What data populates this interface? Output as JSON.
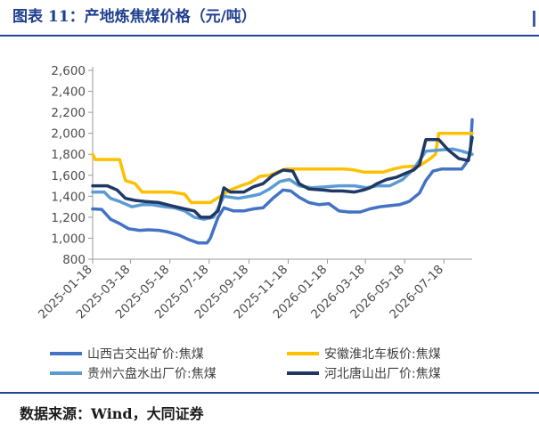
{
  "title": "图表 11：产地炼焦煤价格（元/吨）",
  "source": "数据来源：Wind，大同证券",
  "chart_data": {
    "type": "line",
    "x_tick_labels": [
      "2025-01-18",
      "2025-03-18",
      "2025-05-18",
      "2025-07-18",
      "2025-09-18",
      "2025-11-18",
      "2026-01-18",
      "2026-03-18",
      "2026-05-18",
      "2026-07-18"
    ],
    "x_domain": [
      "2025-01-18",
      "2026-08-31"
    ],
    "yticks": [
      800,
      1000,
      1200,
      1400,
      1600,
      1800,
      2000,
      2200,
      2400,
      2600
    ],
    "ylim": [
      800,
      2600
    ],
    "legend_position": "bottom",
    "series": [
      {
        "name": "山西古交出矿价:焦煤",
        "color": "#4472c4",
        "width": 3.5,
        "points": [
          [
            "2025-01-18",
            1280
          ],
          [
            "2025-02-01",
            1275
          ],
          [
            "2025-02-15",
            1180
          ],
          [
            "2025-03-01",
            1140
          ],
          [
            "2025-03-15",
            1090
          ],
          [
            "2025-04-01",
            1075
          ],
          [
            "2025-04-15",
            1080
          ],
          [
            "2025-05-01",
            1075
          ],
          [
            "2025-05-15",
            1060
          ],
          [
            "2025-06-01",
            1030
          ],
          [
            "2025-06-15",
            990
          ],
          [
            "2025-07-01",
            955
          ],
          [
            "2025-07-15",
            955
          ],
          [
            "2025-07-20",
            1000
          ],
          [
            "2025-08-01",
            1200
          ],
          [
            "2025-08-10",
            1290
          ],
          [
            "2025-08-25",
            1260
          ],
          [
            "2025-09-10",
            1260
          ],
          [
            "2025-09-25",
            1280
          ],
          [
            "2025-10-10",
            1290
          ],
          [
            "2025-10-25",
            1380
          ],
          [
            "2025-11-10",
            1460
          ],
          [
            "2025-11-22",
            1450
          ],
          [
            "2025-12-05",
            1390
          ],
          [
            "2025-12-20",
            1340
          ],
          [
            "2026-01-05",
            1320
          ],
          [
            "2026-01-20",
            1330
          ],
          [
            "2026-02-05",
            1260
          ],
          [
            "2026-02-20",
            1250
          ],
          [
            "2026-03-10",
            1250
          ],
          [
            "2026-03-25",
            1280
          ],
          [
            "2026-04-10",
            1300
          ],
          [
            "2026-04-25",
            1310
          ],
          [
            "2026-05-10",
            1320
          ],
          [
            "2026-05-25",
            1350
          ],
          [
            "2026-06-10",
            1430
          ],
          [
            "2026-06-20",
            1550
          ],
          [
            "2026-07-01",
            1640
          ],
          [
            "2026-07-15",
            1660
          ],
          [
            "2026-08-01",
            1660
          ],
          [
            "2026-08-15",
            1660
          ],
          [
            "2026-08-22",
            1720
          ],
          [
            "2026-08-28",
            1800
          ],
          [
            "2026-08-31",
            2130
          ]
        ]
      },
      {
        "name": "安徽淮北车板价:焦煤",
        "color": "#ffc000",
        "width": 3.5,
        "points": [
          [
            "2025-01-18",
            1800
          ],
          [
            "2025-01-22",
            1750
          ],
          [
            "2025-03-01",
            1750
          ],
          [
            "2025-03-10",
            1550
          ],
          [
            "2025-03-25",
            1520
          ],
          [
            "2025-04-05",
            1440
          ],
          [
            "2025-05-01",
            1440
          ],
          [
            "2025-05-20",
            1440
          ],
          [
            "2025-06-10",
            1420
          ],
          [
            "2025-06-20",
            1340
          ],
          [
            "2025-07-20",
            1340
          ],
          [
            "2025-08-05",
            1400
          ],
          [
            "2025-08-20",
            1460
          ],
          [
            "2025-09-05",
            1500
          ],
          [
            "2025-09-20",
            1530
          ],
          [
            "2025-10-05",
            1590
          ],
          [
            "2025-10-20",
            1600
          ],
          [
            "2025-11-05",
            1640
          ],
          [
            "2025-11-15",
            1660
          ],
          [
            "2025-12-01",
            1660
          ],
          [
            "2026-01-15",
            1660
          ],
          [
            "2026-02-15",
            1660
          ],
          [
            "2026-03-01",
            1650
          ],
          [
            "2026-03-15",
            1630
          ],
          [
            "2026-04-15",
            1630
          ],
          [
            "2026-05-01",
            1660
          ],
          [
            "2026-05-15",
            1680
          ],
          [
            "2026-06-10",
            1690
          ],
          [
            "2026-06-25",
            1750
          ],
          [
            "2026-07-05",
            1800
          ],
          [
            "2026-07-10",
            2000
          ],
          [
            "2026-08-31",
            2000
          ]
        ]
      },
      {
        "name": "贵州六盘水出厂价:焦煤",
        "color": "#5b9bd5",
        "width": 3.5,
        "points": [
          [
            "2025-01-18",
            1440
          ],
          [
            "2025-02-05",
            1440
          ],
          [
            "2025-02-15",
            1380
          ],
          [
            "2025-03-01",
            1350
          ],
          [
            "2025-03-20",
            1300
          ],
          [
            "2025-04-05",
            1320
          ],
          [
            "2025-04-20",
            1320
          ],
          [
            "2025-05-10",
            1300
          ],
          [
            "2025-05-25",
            1290
          ],
          [
            "2025-06-10",
            1260
          ],
          [
            "2025-06-25",
            1200
          ],
          [
            "2025-07-10",
            1180
          ],
          [
            "2025-07-25",
            1200
          ],
          [
            "2025-08-10",
            1400
          ],
          [
            "2025-09-01",
            1380
          ],
          [
            "2025-09-20",
            1400
          ],
          [
            "2025-10-05",
            1420
          ],
          [
            "2025-10-20",
            1470
          ],
          [
            "2025-11-05",
            1540
          ],
          [
            "2025-11-20",
            1560
          ],
          [
            "2025-12-05",
            1500
          ],
          [
            "2025-12-25",
            1480
          ],
          [
            "2026-01-15",
            1490
          ],
          [
            "2026-02-05",
            1500
          ],
          [
            "2026-03-01",
            1500
          ],
          [
            "2026-03-20",
            1480
          ],
          [
            "2026-04-05",
            1500
          ],
          [
            "2026-04-25",
            1500
          ],
          [
            "2026-05-15",
            1560
          ],
          [
            "2026-06-01",
            1660
          ],
          [
            "2026-06-20",
            1830
          ],
          [
            "2026-07-10",
            1840
          ],
          [
            "2026-08-01",
            1850
          ],
          [
            "2026-08-15",
            1830
          ],
          [
            "2026-08-31",
            1800
          ]
        ]
      },
      {
        "name": "河北唐山出厂价:焦煤",
        "color": "#1f3864",
        "width": 3.5,
        "points": [
          [
            "2025-01-18",
            1500
          ],
          [
            "2025-02-10",
            1500
          ],
          [
            "2025-02-25",
            1460
          ],
          [
            "2025-03-10",
            1380
          ],
          [
            "2025-03-25",
            1360
          ],
          [
            "2025-04-10",
            1350
          ],
          [
            "2025-05-01",
            1340
          ],
          [
            "2025-05-20",
            1310
          ],
          [
            "2025-06-10",
            1280
          ],
          [
            "2025-06-25",
            1260
          ],
          [
            "2025-07-05",
            1200
          ],
          [
            "2025-07-20",
            1200
          ],
          [
            "2025-08-01",
            1260
          ],
          [
            "2025-08-10",
            1480
          ],
          [
            "2025-08-20",
            1440
          ],
          [
            "2025-09-10",
            1440
          ],
          [
            "2025-09-25",
            1490
          ],
          [
            "2025-10-10",
            1520
          ],
          [
            "2025-10-25",
            1600
          ],
          [
            "2025-11-10",
            1650
          ],
          [
            "2025-11-25",
            1640
          ],
          [
            "2025-12-05",
            1520
          ],
          [
            "2025-12-20",
            1470
          ],
          [
            "2026-01-10",
            1460
          ],
          [
            "2026-01-25",
            1450
          ],
          [
            "2026-02-10",
            1450
          ],
          [
            "2026-03-01",
            1440
          ],
          [
            "2026-03-15",
            1460
          ],
          [
            "2026-03-25",
            1480
          ],
          [
            "2026-04-05",
            1520
          ],
          [
            "2026-04-20",
            1560
          ],
          [
            "2026-05-05",
            1580
          ],
          [
            "2026-05-20",
            1620
          ],
          [
            "2026-06-01",
            1650
          ],
          [
            "2026-06-10",
            1700
          ],
          [
            "2026-06-20",
            1940
          ],
          [
            "2026-07-10",
            1940
          ],
          [
            "2026-07-25",
            1840
          ],
          [
            "2026-08-10",
            1760
          ],
          [
            "2026-08-25",
            1740
          ],
          [
            "2026-08-31",
            1960
          ]
        ]
      }
    ]
  }
}
